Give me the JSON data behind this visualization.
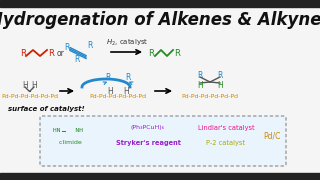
{
  "title": "Hydrogenation of Alkenes & Alkynes",
  "bg_color": "#f5f5f5",
  "top_bar_color": "#222222",
  "bottom_bar_color": "#222222",
  "alkene_color": "#cc2200",
  "alkyne_color": "#2288cc",
  "product_color": "#228B22",
  "pd_color": "#cc8800",
  "black": "#111111",
  "gray": "#555555",
  "box_bg": "#eaf4fc",
  "box_border": "#888888",
  "h2_label": "H2, catalyst",
  "pd_chain": "Pd-Pd-Pd-Pd-Pd-Pd",
  "surface_label": "surface of catalyst!",
  "reagent1_line1": "HN    NH",
  "reagent1_line2": "  climide",
  "reagent1_color": "#228B22",
  "reagent2_line1": "(Ph₃PCuH)₆",
  "reagent2_line2": "Stryker's reagent",
  "reagent2_color": "#9922cc",
  "reagent3": "Lindlar's catalyst",
  "reagent3_color": "#ee1188",
  "reagent4": "P-2 catalyst",
  "reagent4_color": "#aaaa00",
  "reagent5": "Pd/C",
  "reagent5_color": "#cc8800"
}
